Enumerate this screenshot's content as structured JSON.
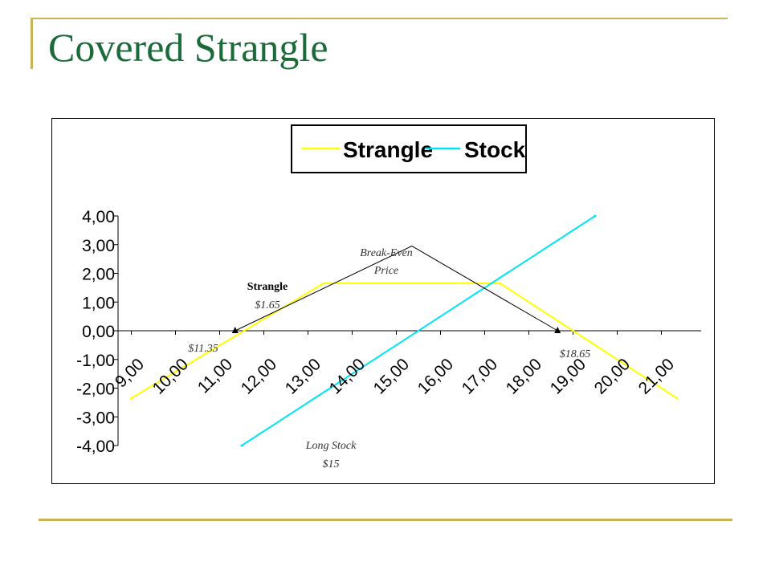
{
  "slide": {
    "title": "Covered Strangle"
  },
  "chart_data": {
    "type": "line",
    "title": "",
    "xlabel": "",
    "ylabel": "",
    "x_ticks": [
      "9,00",
      "10,00",
      "11,00",
      "12,00",
      "13,00",
      "14,00",
      "15,00",
      "16,00",
      "17,00",
      "18,00",
      "19,00",
      "20,00",
      "21,00"
    ],
    "y_ticks": [
      "4,00",
      "3,00",
      "2,00",
      "1,00",
      "0,00",
      "-1,00",
      "-2,00",
      "-3,00",
      "-4,00"
    ],
    "xlim": [
      8.7,
      21.9
    ],
    "ylim": [
      -4,
      4
    ],
    "legend_position": "top",
    "series": [
      {
        "name": "Strangle",
        "color": "#FFFF00",
        "points": [
          [
            9.0,
            -2.35
          ],
          [
            13.35,
            1.65
          ],
          [
            17.35,
            1.65
          ],
          [
            21.35,
            -2.35
          ]
        ]
      },
      {
        "name": "Stock",
        "color": "#00E5F5",
        "points": [
          [
            11.5,
            -4.0
          ],
          [
            19.5,
            4.0
          ]
        ]
      }
    ],
    "breakeven_line": {
      "color": "#000000",
      "points": [
        [
          11.35,
          0.0
        ],
        [
          15.35,
          2.95
        ],
        [
          18.65,
          0.0
        ]
      ]
    },
    "annotations": {
      "breakeven": [
        "Break-Even",
        "Price"
      ],
      "strangle": [
        "Strangle",
        "$1.65"
      ],
      "low_be": "$11.35",
      "high_be": "$18.65",
      "long_stock": [
        "Long Stock",
        "$15"
      ]
    }
  }
}
